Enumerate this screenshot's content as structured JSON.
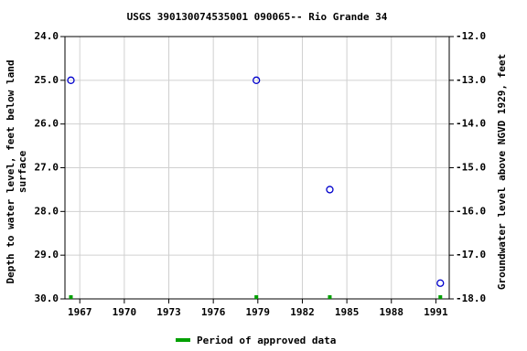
{
  "chart_data": {
    "type": "scatter",
    "title": "USGS 390130074535001 090065-- Rio Grande 34",
    "ylabel": [
      "Depth to water level, feet below land",
      "surface"
    ],
    "y2label": "Groundwater level above NGVD 1929, feet",
    "xlim": [
      1966,
      1991.9
    ],
    "xticks": [
      1967,
      1970,
      1973,
      1976,
      1979,
      1982,
      1985,
      1988,
      1991
    ],
    "ylim": [
      24,
      30
    ],
    "y_inverted": true,
    "yticks": [
      {
        "value": 24,
        "label": "24.0"
      },
      {
        "value": 25,
        "label": "25.0"
      },
      {
        "value": 26,
        "label": "26.0"
      },
      {
        "value": 27,
        "label": "27.0"
      },
      {
        "value": 28,
        "label": "28.0"
      },
      {
        "value": 29,
        "label": "29.0"
      },
      {
        "value": 30,
        "label": "30.0"
      }
    ],
    "y2lim": [
      -18,
      -12
    ],
    "y2ticks": [
      {
        "value": -12,
        "label": "-12.0"
      },
      {
        "value": -13,
        "label": "-13.0"
      },
      {
        "value": -14,
        "label": "-14.0"
      },
      {
        "value": -15,
        "label": "-15.0"
      },
      {
        "value": -16,
        "label": "-16.0"
      },
      {
        "value": -17,
        "label": "-17.0"
      },
      {
        "value": -18,
        "label": "-18.0"
      }
    ],
    "grid": true,
    "series": [
      {
        "color": "#0000cc",
        "x": [
          1966.4,
          1978.9,
          1983.85,
          1991.3
        ],
        "values": [
          25.0,
          25.0,
          27.5,
          29.64
        ]
      }
    ],
    "approved": {
      "name": "Period of approved data",
      "color": "#00a000",
      "x": [
        1966.4,
        1978.9,
        1983.85,
        1991.3
      ]
    }
  }
}
